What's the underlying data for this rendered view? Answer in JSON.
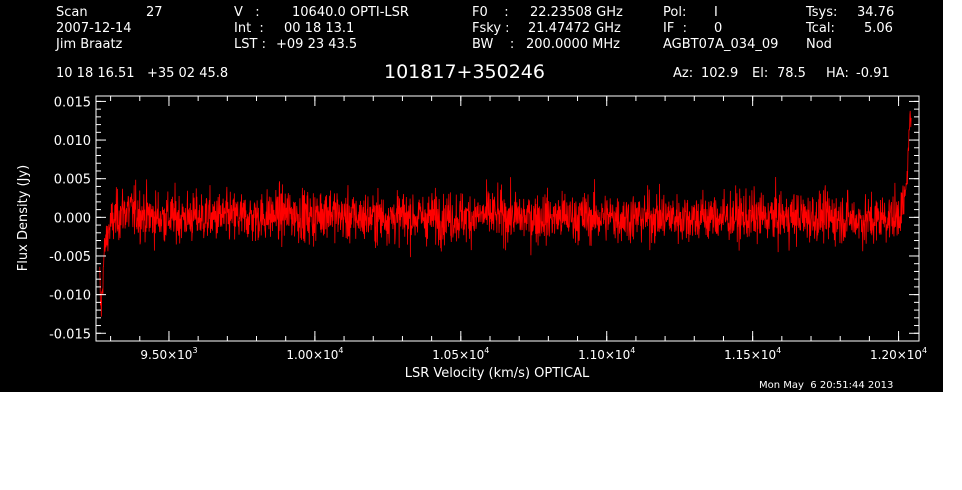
{
  "header": {
    "scan_label": "Scan",
    "scan_value": "27",
    "date": "2007-12-14",
    "observer": "Jim Braatz",
    "v_label": "V   :",
    "v_value": "10640.0 OPTI-LSR",
    "int_label": "Int  :",
    "int_value": "00 18 13.1",
    "lst_label": "LST : ",
    "lst_value": "+09 23 43.5",
    "f0_label": "F0    :",
    "f0_value": "22.23508 GHz",
    "fsky_label": "Fsky :",
    "fsky_value": "21.47472 GHz",
    "bw_label": "BW    :",
    "bw_value": "200.0000 MHz",
    "pol_label": "Pol:",
    "pol_value": "I",
    "if_label": "IF  :",
    "if_value": "0",
    "project": "AGBT07A_034_09",
    "tsys_label": "Tsys:",
    "tsys_value": "34.76",
    "tcal_label": "Tcal:",
    "tcal_value": "5.06",
    "proc": "Nod",
    "coords": "10 18 16.51   +35 02 45.8",
    "source": "101817+350246",
    "az_label": "Az:",
    "az_value": "102.9",
    "el_label": "El:",
    "el_value": "78.5",
    "ha_label": "HA:",
    "ha_value": "-0.91"
  },
  "timestamp": "Mon May  6 20:51:44 2013",
  "chart_data": {
    "type": "line",
    "xlabel": "LSR Velocity (km/s) OPTICAL",
    "ylabel": "Flux Density (Jy)",
    "xlim": [
      9250,
      12070
    ],
    "ylim": [
      -0.016,
      0.0157
    ],
    "x_ticks": [
      {
        "value": 9500,
        "mantissa": "9.50",
        "exponent": "3"
      },
      {
        "value": 10000,
        "mantissa": "1.00",
        "exponent": "4"
      },
      {
        "value": 10500,
        "mantissa": "1.05",
        "exponent": "4"
      },
      {
        "value": 11000,
        "mantissa": "1.10",
        "exponent": "4"
      },
      {
        "value": 11500,
        "mantissa": "1.15",
        "exponent": "4"
      },
      {
        "value": 12000,
        "mantissa": "1.20",
        "exponent": "4"
      }
    ],
    "y_ticks": [
      {
        "value": 0.015,
        "label": "0.015"
      },
      {
        "value": 0.01,
        "label": "0.010"
      },
      {
        "value": 0.005,
        "label": "0.005"
      },
      {
        "value": 0.0,
        "label": "0.000"
      },
      {
        "value": -0.005,
        "label": "-0.005"
      },
      {
        "value": -0.01,
        "label": "-0.010"
      },
      {
        "value": -0.015,
        "label": "-0.015"
      }
    ],
    "series_color": "#ff0000",
    "series": [
      {
        "x": [
          9263,
          9265,
          9268,
          9272,
          9276,
          9280,
          9285,
          9290,
          9300,
          9320,
          9350,
          9400,
          9450,
          9500,
          9600,
          9700,
          9800,
          9900,
          10000,
          10040,
          10100,
          10200,
          10300,
          10400,
          10500,
          10600,
          10700,
          10800,
          10900,
          11000,
          11100,
          11200,
          11300,
          11400,
          11500,
          11600,
          11700,
          11800,
          11900,
          11950,
          11990,
          12010,
          12020,
          12027,
          12033,
          12038,
          12043
        ],
        "y": [
          -0.008,
          -0.011,
          -0.012,
          -0.009,
          -0.006,
          -0.004,
          -0.003,
          -0.002,
          -0.001,
          0.0,
          0.001,
          0.0005,
          0.0,
          0.0,
          0.0,
          0.0,
          0.0,
          0.0005,
          0.0,
          0.001,
          0.0,
          0.0,
          0.0,
          0.0,
          0.0,
          0.0003,
          0.0,
          0.0,
          0.0,
          0.0,
          0.0,
          0.0,
          0.0,
          0.0,
          0.0,
          0.0,
          0.0,
          0.0,
          -0.0005,
          0.0,
          0.0,
          0.001,
          0.002,
          0.004,
          0.008,
          0.013,
          0.012
        ],
        "noise_sigma": [
          0.002,
          0.002,
          0.002,
          0.002,
          0.002,
          0.002,
          0.002,
          0.002,
          0.0025,
          0.0027,
          0.0028,
          0.0028,
          0.0028,
          0.0027,
          0.0027,
          0.0027,
          0.0027,
          0.0028,
          0.0028,
          0.0028,
          0.0027,
          0.0027,
          0.0027,
          0.0027,
          0.0027,
          0.0027,
          0.0027,
          0.0027,
          0.0027,
          0.0027,
          0.0027,
          0.0027,
          0.0027,
          0.0027,
          0.0027,
          0.0027,
          0.0027,
          0.0027,
          0.0027,
          0.0027,
          0.0026,
          0.0025,
          0.002,
          0.0015,
          0.0015,
          0.001,
          0.001
        ]
      }
    ]
  }
}
